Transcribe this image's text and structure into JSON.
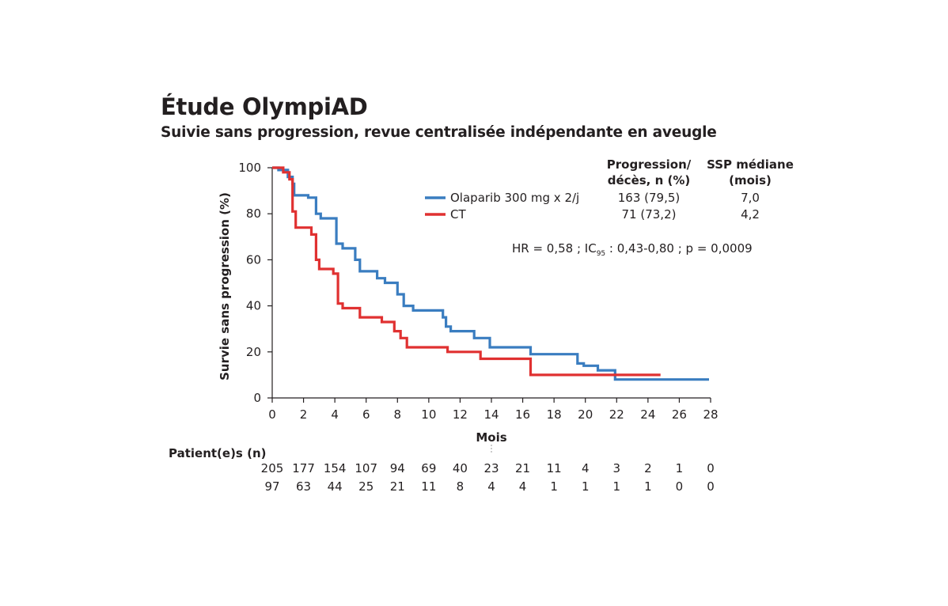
{
  "chart_data": {
    "type": "line",
    "title": "Étude OlympiAD",
    "subtitle": "Suivie sans progression, revue centralisée indépendante en aveugle",
    "xlabel": "Mois",
    "ylabel": "Survie sans progression (%)",
    "xlim": [
      0,
      28
    ],
    "ylim": [
      0,
      100
    ],
    "xticks": [
      "0",
      "2",
      "4",
      "6",
      "8",
      "10",
      "12",
      "14",
      "16",
      "18",
      "20",
      "22",
      "24",
      "26",
      "28"
    ],
    "yticks": [
      "0",
      "20",
      "40",
      "60",
      "80",
      "100"
    ],
    "legend_headers": {
      "col1_line1": "Progression/",
      "col1_line2": "décès, n (%)",
      "col2_line1": "SSP médiane",
      "col2_line2": "(mois)"
    },
    "series": [
      {
        "name": "Olaparib 300 mg x 2/j",
        "color": "#3a7dc0",
        "events": "163 (79,5)",
        "median": "7,0",
        "x": [
          0,
          0.4,
          0.4,
          1.0,
          1.0,
          1.3,
          1.3,
          1.4,
          1.4,
          2.3,
          2.3,
          2.8,
          2.8,
          3.1,
          3.1,
          4.1,
          4.1,
          4.5,
          4.5,
          5.3,
          5.3,
          5.6,
          5.6,
          6.7,
          6.7,
          7.2,
          7.2,
          8.0,
          8.0,
          8.4,
          8.4,
          9.0,
          9.0,
          10.9,
          10.9,
          11.1,
          11.1,
          11.4,
          11.4,
          12.9,
          12.9,
          13.9,
          13.9,
          16.5,
          16.5,
          19.5,
          19.5,
          19.9,
          19.9,
          20.8,
          20.8,
          21.9,
          21.9,
          27.9
        ],
        "y": [
          100,
          100,
          99,
          99,
          96,
          96,
          93,
          93,
          88,
          88,
          87,
          87,
          80,
          80,
          78,
          78,
          67,
          67,
          65,
          65,
          60,
          60,
          55,
          55,
          52,
          52,
          50,
          50,
          45,
          45,
          40,
          40,
          38,
          38,
          35,
          35,
          31,
          31,
          29,
          29,
          26,
          26,
          22,
          22,
          19,
          19,
          15,
          15,
          14,
          14,
          12,
          12,
          8,
          8
        ]
      },
      {
        "name": "CT",
        "color": "#e03131",
        "events": "71 (73,2)",
        "median": "4,2",
        "x": [
          0,
          0.7,
          0.7,
          1.1,
          1.1,
          1.3,
          1.3,
          1.5,
          1.5,
          2.5,
          2.5,
          2.8,
          2.8,
          3.0,
          3.0,
          3.9,
          3.9,
          4.2,
          4.2,
          4.5,
          4.5,
          5.6,
          5.6,
          7.0,
          7.0,
          7.8,
          7.8,
          8.2,
          8.2,
          8.6,
          8.6,
          11.2,
          11.2,
          13.3,
          13.3,
          16.5,
          16.5,
          24.8
        ],
        "y": [
          100,
          100,
          98,
          98,
          95,
          95,
          81,
          81,
          74,
          74,
          71,
          71,
          60,
          60,
          56,
          56,
          54,
          54,
          41,
          41,
          39,
          39,
          35,
          35,
          33,
          33,
          29,
          29,
          26,
          26,
          22,
          22,
          20,
          20,
          17,
          17,
          10,
          10
        ]
      }
    ],
    "annotation": {
      "prefix": "HR = 0,58 ; IC",
      "sub": "95",
      "suffix": " : 0,43-0,80 ; p = 0,0009"
    },
    "risk_table": {
      "header": "Patient(e)s (n)",
      "rows": [
        [
          "205",
          "177",
          "154",
          "107",
          "94",
          "69",
          "40",
          "23",
          "21",
          "11",
          "4",
          "3",
          "2",
          "1",
          "0"
        ],
        [
          "97",
          "63",
          "44",
          "25",
          "21",
          "11",
          "8",
          "4",
          "4",
          "1",
          "1",
          "1",
          "1",
          "0",
          "0"
        ]
      ]
    }
  }
}
